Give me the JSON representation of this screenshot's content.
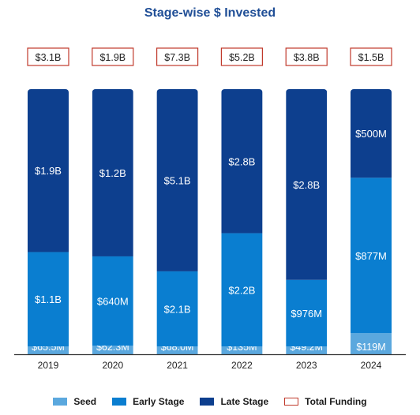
{
  "chart_data": {
    "type": "bar",
    "stacked": true,
    "title": "Stage-wise $ Invested",
    "units": "USD",
    "categories": [
      "2019",
      "2020",
      "2021",
      "2022",
      "2023",
      "2024"
    ],
    "series": [
      {
        "name": "Seed",
        "color": "#5ba8de",
        "values": [
          0.0655,
          0.0623,
          0.068,
          0.135,
          0.0492,
          0.119
        ],
        "labels": [
          "$65.5M",
          "$62.3M",
          "$68.0M",
          "$135M",
          "$49.2M",
          "$119M"
        ]
      },
      {
        "name": "Early Stage",
        "color": "#0a7ed0",
        "values": [
          1.1,
          0.64,
          2.1,
          2.2,
          0.976,
          0.877
        ],
        "labels": [
          "$1.1B",
          "$640M",
          "$2.1B",
          "$2.2B",
          "$976M",
          "$877M"
        ]
      },
      {
        "name": "Late Stage",
        "color": "#0d3f8e",
        "values": [
          1.9,
          1.2,
          5.1,
          2.8,
          2.8,
          0.5
        ],
        "labels": [
          "$1.9B",
          "$1.2B",
          "$5.1B",
          "$2.8B",
          "$2.8B",
          "$500M"
        ]
      }
    ],
    "totals": {
      "name": "Total Funding",
      "values": [
        3.1,
        1.9,
        7.3,
        5.2,
        3.8,
        1.5
      ],
      "labels": [
        "$3.1B",
        "$1.9B",
        "$7.3B",
        "$5.2B",
        "$3.8B",
        "$1.5B"
      ],
      "border_color": "#c0392b"
    },
    "normalized_to_100_percent": true,
    "legend_placement": "bottom"
  }
}
